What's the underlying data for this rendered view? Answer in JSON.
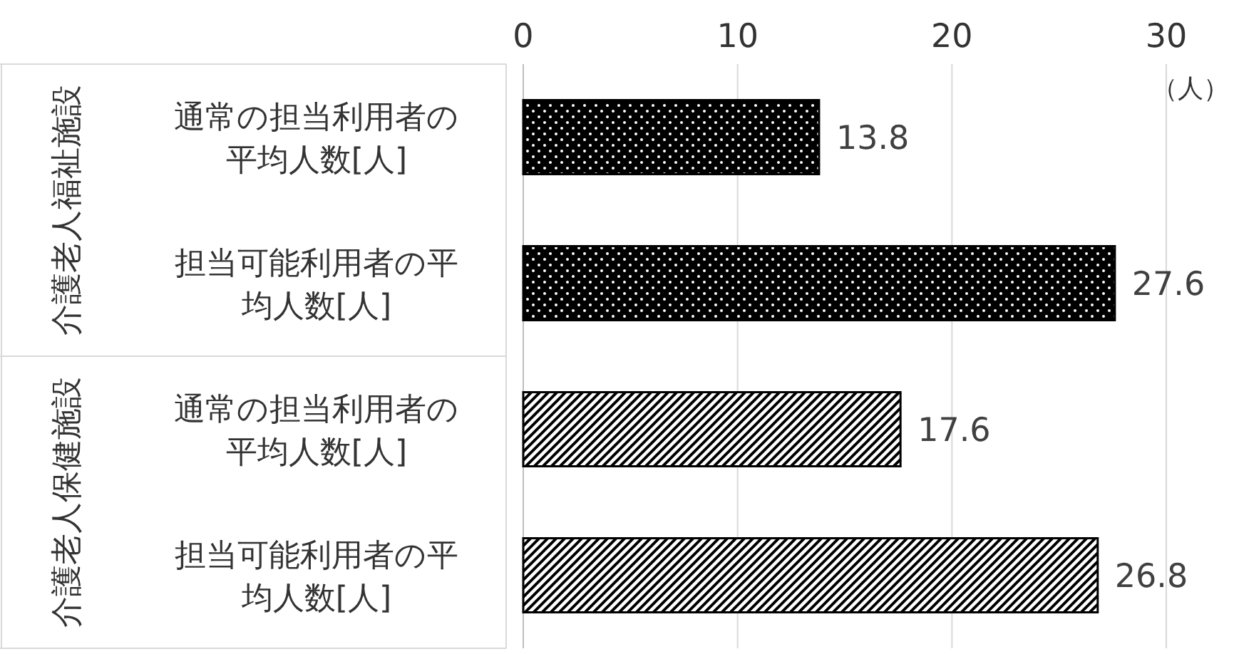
{
  "chart_data": {
    "type": "bar",
    "orientation": "horizontal",
    "xlabel": "（人）",
    "categories": [
      "通常の担当利用者の平均人数[人]",
      "担当可能利用者の平均人数[人]",
      "通常の担当利用者の平均人数[人]",
      "担当可能利用者の平均人数[人]"
    ],
    "values": [
      13.8,
      27.6,
      17.6,
      26.8
    ],
    "colors": [
      "#000000",
      "#000000",
      "#000000",
      "#000000"
    ],
    "annotations": [
      "介護老人福祉施設",
      "介護老人保健施設"
    ],
    "xlim": [
      0,
      30
    ],
    "xticks": [
      0,
      10,
      20,
      30
    ],
    "grid": "x",
    "data_labels": true
  }
}
